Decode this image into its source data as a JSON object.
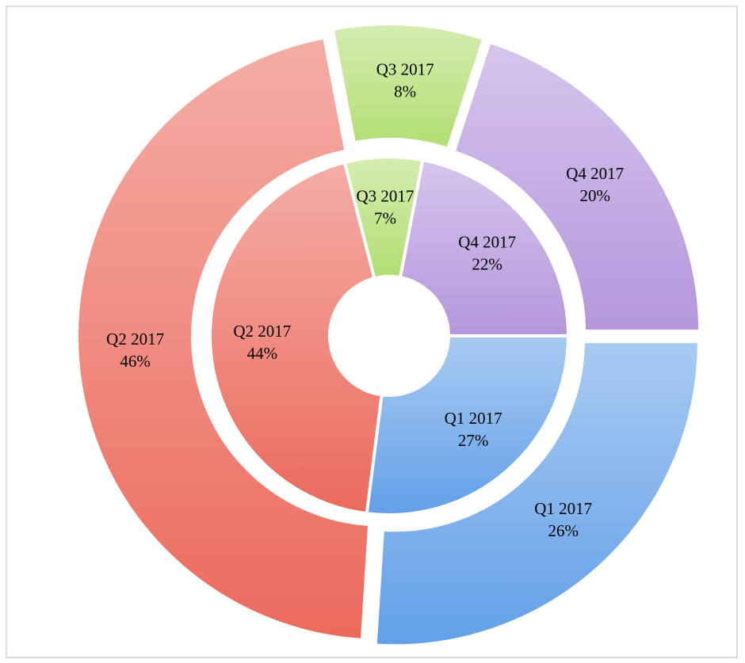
{
  "chart_data": {
    "type": "donut",
    "categories": [
      "Q1 2017",
      "Q2 2017",
      "Q3 2017",
      "Q4 2017"
    ],
    "colors": [
      "#62a0e8",
      "#ec6a5c",
      "#b2de72",
      "#b596dc"
    ],
    "series": [
      {
        "values": [
          27,
          44,
          7,
          22
        ],
        "value_labels": [
          "27%",
          "44%",
          "7%",
          "22%"
        ]
      },
      {
        "values": [
          26,
          46,
          8,
          20
        ],
        "value_labels": [
          "26%",
          "46%",
          "8%",
          "20%"
        ]
      }
    ]
  }
}
